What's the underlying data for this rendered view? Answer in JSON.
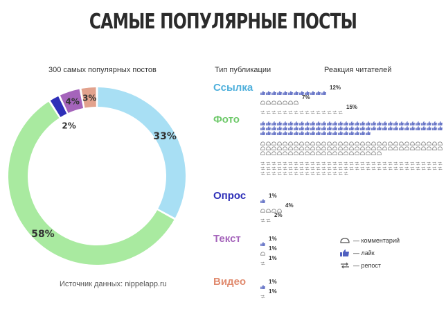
{
  "title": "САМЫЕ ПОПУЛЯРНЫЕ ПОСТЫ",
  "chart_data": [
    {
      "type": "pie",
      "title": "300 самых популярных постов",
      "source": "Источник данных: nippelapp.ru",
      "slices": [
        {
          "name": "Ссылка",
          "value": 33,
          "label": "33%",
          "color": "#a8dff4"
        },
        {
          "name": "Фото",
          "value": 58,
          "label": "58%",
          "color": "#a9eaa0"
        },
        {
          "name": "Опрос",
          "value": 2,
          "label": "2%",
          "color": "#2e2fb8"
        },
        {
          "name": "Текст",
          "value": 4,
          "label": "4%",
          "color": "#a564bb"
        },
        {
          "name": "Видео",
          "value": 3,
          "label": "3%",
          "color": "#e2a28d"
        }
      ]
    },
    {
      "type": "table",
      "columns": [
        "Тип публикации",
        "Реакция читателей"
      ],
      "rows": [
        {
          "type": "Ссылка",
          "color": "#4fb0dc",
          "reactions": [
            {
              "metric": "like",
              "value": 12,
              "label": "12%"
            },
            {
              "metric": "comment",
              "value": 7,
              "label": "7%"
            },
            {
              "metric": "repost",
              "value": 15,
              "label": "15%"
            }
          ]
        },
        {
          "type": "Фото",
          "color": "#6ec96a",
          "reactions": [
            {
              "metric": "like",
              "value": 86,
              "label": "86%"
            },
            {
              "metric": "comment",
              "value": 88,
              "label": "88%"
            },
            {
              "metric": "repost",
              "value": 82,
              "label": "82%"
            }
          ]
        },
        {
          "type": "Опрос",
          "color": "#2e2fb8",
          "reactions": [
            {
              "metric": "like",
              "value": 1,
              "label": "1%"
            },
            {
              "metric": "comment",
              "value": 4,
              "label": "4%"
            },
            {
              "metric": "repost",
              "value": 2,
              "label": "2%"
            }
          ]
        },
        {
          "type": "Текст",
          "color": "#a564bb",
          "reactions": [
            {
              "metric": "like",
              "value": 1,
              "label": "1%"
            },
            {
              "metric": "comment",
              "value": 1,
              "label": "1%"
            },
            {
              "metric": "repost",
              "value": 1,
              "label": "1%"
            }
          ]
        },
        {
          "type": "Видео",
          "color": "#e08a6e",
          "reactions": [
            {
              "metric": "like",
              "value": 1,
              "label": "1%"
            },
            {
              "metric": "repost",
              "value": 1,
              "label": "1%"
            }
          ]
        }
      ],
      "legend": [
        {
          "metric": "comment",
          "label": "— комментарий"
        },
        {
          "metric": "like",
          "label": "— лайк"
        },
        {
          "metric": "repost",
          "label": "— репост"
        }
      ]
    }
  ]
}
